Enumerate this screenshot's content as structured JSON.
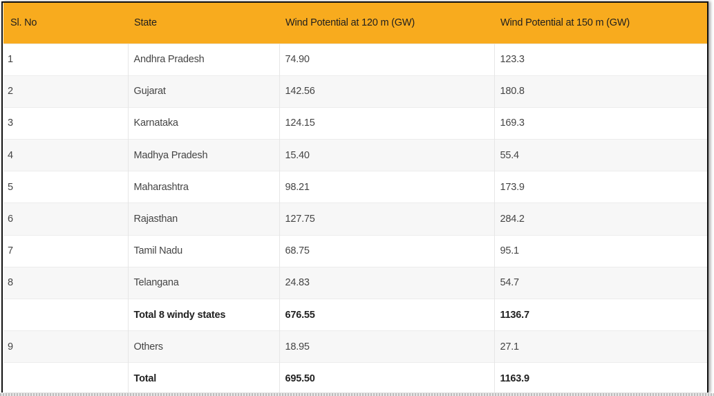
{
  "table": {
    "headers": [
      "Sl. No",
      "State",
      "Wind Potential at 120 m (GW)",
      "Wind Potential at 150 m (GW)"
    ],
    "rows": [
      {
        "sl": "1",
        "state": "Andhra Pradesh",
        "p120": "74.90",
        "p150": "123.3",
        "bold": false
      },
      {
        "sl": "2",
        "state": "Gujarat",
        "p120": "142.56",
        "p150": "180.8",
        "bold": false
      },
      {
        "sl": "3",
        "state": "Karnataka",
        "p120": "124.15",
        "p150": "169.3",
        "bold": false
      },
      {
        "sl": "4",
        "state": "Madhya Pradesh",
        "p120": "15.40",
        "p150": "55.4",
        "bold": false
      },
      {
        "sl": "5",
        "state": "Maharashtra",
        "p120": "98.21",
        "p150": "173.9",
        "bold": false
      },
      {
        "sl": "6",
        "state": "Rajasthan",
        "p120": "127.75",
        "p150": "284.2",
        "bold": false
      },
      {
        "sl": "7",
        "state": "Tamil Nadu",
        "p120": "68.75",
        "p150": "95.1",
        "bold": false
      },
      {
        "sl": "8",
        "state": "Telangana",
        "p120": "24.83",
        "p150": "54.7",
        "bold": false
      },
      {
        "sl": "",
        "state": "Total 8 windy states",
        "p120": "676.55",
        "p150": "1136.7",
        "bold": true
      },
      {
        "sl": "9",
        "state": "Others",
        "p120": "18.95",
        "p150": "27.1",
        "bold": false
      },
      {
        "sl": "",
        "state": "Total",
        "p120": "695.50",
        "p150": "1163.9",
        "bold": true
      }
    ]
  },
  "colors": {
    "header_bg": "#f8ab1e",
    "stripe_bg": "#f7f7f7"
  }
}
